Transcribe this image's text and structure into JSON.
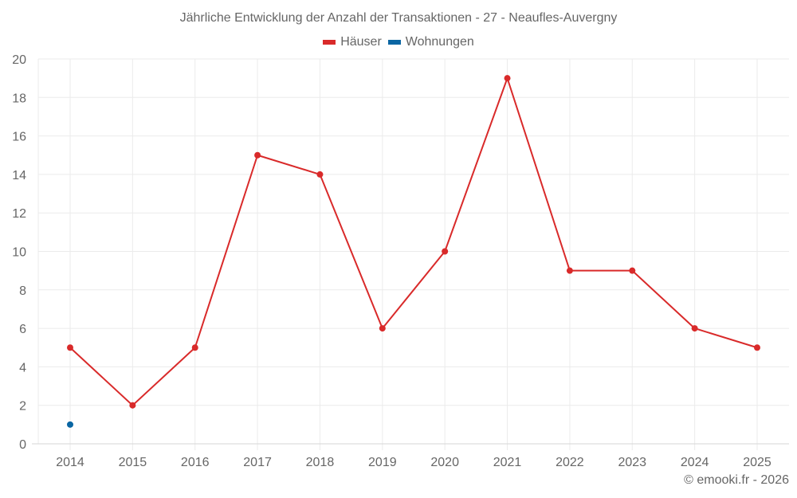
{
  "chart_data": {
    "type": "line",
    "title": "Jährliche Entwicklung der Anzahl der Transaktionen - 27 - Neaufles-Auvergny",
    "xlabel": "",
    "ylabel": "",
    "categories": [
      "2014",
      "2015",
      "2016",
      "2017",
      "2018",
      "2019",
      "2020",
      "2021",
      "2022",
      "2023",
      "2024",
      "2025"
    ],
    "series": [
      {
        "name": "Häuser",
        "color": "#d92a2a",
        "values": [
          5,
          2,
          5,
          15,
          14,
          6,
          10,
          19,
          9,
          9,
          6,
          5
        ]
      },
      {
        "name": "Wohnungen",
        "color": "#0a66a3",
        "values": [
          1,
          null,
          null,
          null,
          null,
          null,
          null,
          null,
          null,
          null,
          null,
          null
        ]
      }
    ],
    "ylim": [
      0,
      20
    ],
    "yticks": [
      0,
      2,
      4,
      6,
      8,
      10,
      12,
      14,
      16,
      18,
      20
    ],
    "grid": true,
    "legend_position": "top"
  },
  "footer": "© emooki.fr - 2026"
}
